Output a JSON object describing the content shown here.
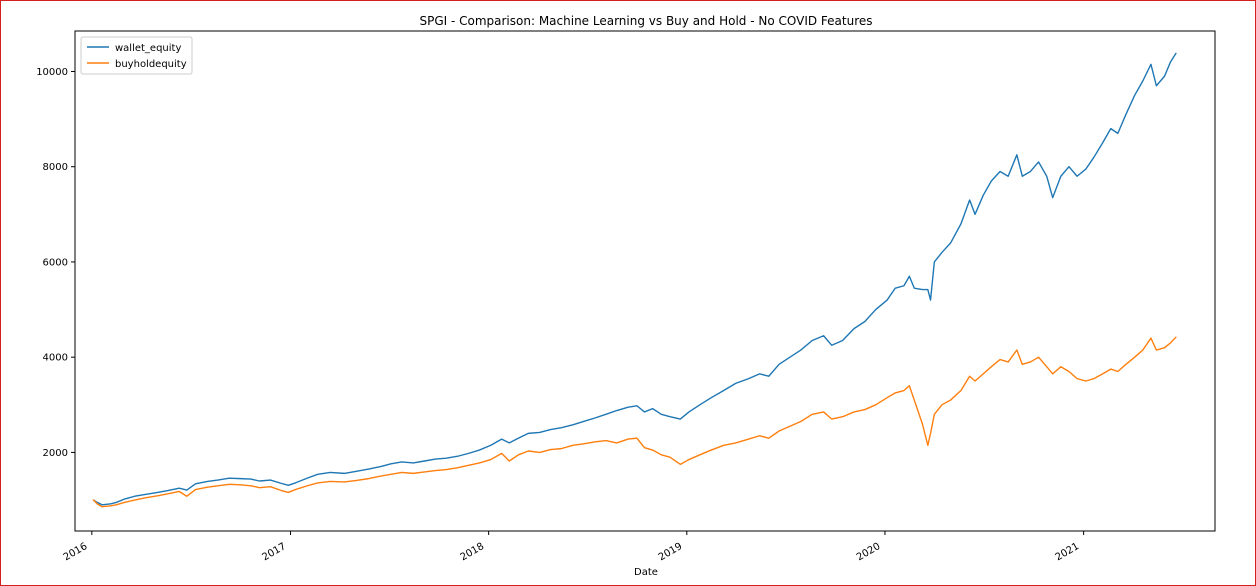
{
  "chart_data": {
    "type": "line",
    "title": "SPGI - Comparison: Machine Learning vs Buy and Hold - No COVID Features",
    "xlabel": "Date",
    "ylabel": "",
    "xlim": [
      "2015-12-01",
      "2021-08-31"
    ],
    "ylim": [
      350,
      10850
    ],
    "x_ticks": [
      "2016",
      "2017",
      "2018",
      "2019",
      "2020",
      "2021"
    ],
    "y_ticks": [
      2000,
      4000,
      6000,
      8000,
      10000
    ],
    "grid": false,
    "legend_position": "top-left",
    "colors": {
      "wallet_equity": "#1f77b4",
      "buyholdequity": "#ff7f0e"
    },
    "series": [
      {
        "name": "wallet_equity",
        "points": [
          [
            "2016-01-04",
            1000
          ],
          [
            "2016-01-11",
            950
          ],
          [
            "2016-01-20",
            900
          ],
          [
            "2016-02-05",
            920
          ],
          [
            "2016-02-15",
            950
          ],
          [
            "2016-03-01",
            1020
          ],
          [
            "2016-03-20",
            1080
          ],
          [
            "2016-04-10",
            1120
          ],
          [
            "2016-05-01",
            1160
          ],
          [
            "2016-05-20",
            1200
          ],
          [
            "2016-06-10",
            1250
          ],
          [
            "2016-06-24",
            1210
          ],
          [
            "2016-07-10",
            1340
          ],
          [
            "2016-08-01",
            1390
          ],
          [
            "2016-08-20",
            1420
          ],
          [
            "2016-09-10",
            1460
          ],
          [
            "2016-10-01",
            1450
          ],
          [
            "2016-10-20",
            1440
          ],
          [
            "2016-11-05",
            1400
          ],
          [
            "2016-11-25",
            1420
          ],
          [
            "2016-12-15",
            1350
          ],
          [
            "2016-12-28",
            1310
          ],
          [
            "2017-01-10",
            1360
          ],
          [
            "2017-02-01",
            1460
          ],
          [
            "2017-02-20",
            1540
          ],
          [
            "2017-03-15",
            1580
          ],
          [
            "2017-04-10",
            1560
          ],
          [
            "2017-05-01",
            1600
          ],
          [
            "2017-05-25",
            1650
          ],
          [
            "2017-06-15",
            1700
          ],
          [
            "2017-07-05",
            1760
          ],
          [
            "2017-07-25",
            1800
          ],
          [
            "2017-08-15",
            1780
          ],
          [
            "2017-09-05",
            1820
          ],
          [
            "2017-09-25",
            1860
          ],
          [
            "2017-10-15",
            1880
          ],
          [
            "2017-11-05",
            1920
          ],
          [
            "2017-11-25",
            1980
          ],
          [
            "2017-12-15",
            2050
          ],
          [
            "2018-01-05",
            2150
          ],
          [
            "2018-01-25",
            2280
          ],
          [
            "2018-02-08",
            2200
          ],
          [
            "2018-02-25",
            2300
          ],
          [
            "2018-03-15",
            2400
          ],
          [
            "2018-04-05",
            2420
          ],
          [
            "2018-04-25",
            2480
          ],
          [
            "2018-05-15",
            2520
          ],
          [
            "2018-06-05",
            2580
          ],
          [
            "2018-06-25",
            2650
          ],
          [
            "2018-07-15",
            2720
          ],
          [
            "2018-08-05",
            2800
          ],
          [
            "2018-08-25",
            2880
          ],
          [
            "2018-09-15",
            2950
          ],
          [
            "2018-10-01",
            2980
          ],
          [
            "2018-10-15",
            2850
          ],
          [
            "2018-10-30",
            2920
          ],
          [
            "2018-11-15",
            2800
          ],
          [
            "2018-12-01",
            2750
          ],
          [
            "2018-12-20",
            2700
          ],
          [
            "2019-01-05",
            2850
          ],
          [
            "2019-01-25",
            3000
          ],
          [
            "2019-02-15",
            3150
          ],
          [
            "2019-03-10",
            3300
          ],
          [
            "2019-04-01",
            3450
          ],
          [
            "2019-04-25",
            3550
          ],
          [
            "2019-05-15",
            3650
          ],
          [
            "2019-06-01",
            3600
          ],
          [
            "2019-06-20",
            3850
          ],
          [
            "2019-07-10",
            4000
          ],
          [
            "2019-07-30",
            4150
          ],
          [
            "2019-08-20",
            4350
          ],
          [
            "2019-09-10",
            4450
          ],
          [
            "2019-09-25",
            4250
          ],
          [
            "2019-10-15",
            4350
          ],
          [
            "2019-11-05",
            4600
          ],
          [
            "2019-11-25",
            4750
          ],
          [
            "2019-12-15",
            5000
          ],
          [
            "2020-01-05",
            5200
          ],
          [
            "2020-01-20",
            5450
          ],
          [
            "2020-02-05",
            5500
          ],
          [
            "2020-02-15",
            5700
          ],
          [
            "2020-02-24",
            5450
          ],
          [
            "2020-03-10",
            5420
          ],
          [
            "2020-03-20",
            5420
          ],
          [
            "2020-03-25",
            5200
          ],
          [
            "2020-04-01",
            6000
          ],
          [
            "2020-04-15",
            6200
          ],
          [
            "2020-05-01",
            6400
          ],
          [
            "2020-05-20",
            6800
          ],
          [
            "2020-06-05",
            7300
          ],
          [
            "2020-06-15",
            7000
          ],
          [
            "2020-06-30",
            7400
          ],
          [
            "2020-07-15",
            7700
          ],
          [
            "2020-07-31",
            7900
          ],
          [
            "2020-08-15",
            7800
          ],
          [
            "2020-08-31",
            8250
          ],
          [
            "2020-09-10",
            7800
          ],
          [
            "2020-09-25",
            7900
          ],
          [
            "2020-10-10",
            8100
          ],
          [
            "2020-10-25",
            7800
          ],
          [
            "2020-11-05",
            7350
          ],
          [
            "2020-11-20",
            7800
          ],
          [
            "2020-12-05",
            8000
          ],
          [
            "2020-12-20",
            7800
          ],
          [
            "2021-01-05",
            7950
          ],
          [
            "2021-01-20",
            8200
          ],
          [
            "2021-02-05",
            8500
          ],
          [
            "2021-02-20",
            8800
          ],
          [
            "2021-03-05",
            8700
          ],
          [
            "2021-03-20",
            9100
          ],
          [
            "2021-04-05",
            9500
          ],
          [
            "2021-04-20",
            9800
          ],
          [
            "2021-05-05",
            10150
          ],
          [
            "2021-05-15",
            9700
          ],
          [
            "2021-05-30",
            9900
          ],
          [
            "2021-06-10",
            10200
          ],
          [
            "2021-06-20",
            10380
          ]
        ]
      },
      {
        "name": "buyholdequity",
        "points": [
          [
            "2016-01-04",
            1000
          ],
          [
            "2016-01-11",
            920
          ],
          [
            "2016-01-20",
            860
          ],
          [
            "2016-02-05",
            880
          ],
          [
            "2016-02-15",
            900
          ],
          [
            "2016-03-01",
            950
          ],
          [
            "2016-03-20",
            1000
          ],
          [
            "2016-04-10",
            1050
          ],
          [
            "2016-05-01",
            1090
          ],
          [
            "2016-05-20",
            1130
          ],
          [
            "2016-06-10",
            1180
          ],
          [
            "2016-06-24",
            1080
          ],
          [
            "2016-07-10",
            1220
          ],
          [
            "2016-08-01",
            1270
          ],
          [
            "2016-08-20",
            1300
          ],
          [
            "2016-09-10",
            1330
          ],
          [
            "2016-10-01",
            1320
          ],
          [
            "2016-10-20",
            1300
          ],
          [
            "2016-11-05",
            1260
          ],
          [
            "2016-11-25",
            1280
          ],
          [
            "2016-12-15",
            1200
          ],
          [
            "2016-12-28",
            1160
          ],
          [
            "2017-01-10",
            1220
          ],
          [
            "2017-02-01",
            1300
          ],
          [
            "2017-02-20",
            1360
          ],
          [
            "2017-03-15",
            1390
          ],
          [
            "2017-04-10",
            1380
          ],
          [
            "2017-05-01",
            1410
          ],
          [
            "2017-05-25",
            1450
          ],
          [
            "2017-06-15",
            1500
          ],
          [
            "2017-07-05",
            1540
          ],
          [
            "2017-07-25",
            1580
          ],
          [
            "2017-08-15",
            1560
          ],
          [
            "2017-09-05",
            1590
          ],
          [
            "2017-09-25",
            1620
          ],
          [
            "2017-10-15",
            1640
          ],
          [
            "2017-11-05",
            1680
          ],
          [
            "2017-11-25",
            1730
          ],
          [
            "2017-12-15",
            1780
          ],
          [
            "2018-01-05",
            1850
          ],
          [
            "2018-01-25",
            1980
          ],
          [
            "2018-02-08",
            1820
          ],
          [
            "2018-02-25",
            1950
          ],
          [
            "2018-03-15",
            2030
          ],
          [
            "2018-04-05",
            2000
          ],
          [
            "2018-04-25",
            2060
          ],
          [
            "2018-05-15",
            2080
          ],
          [
            "2018-06-05",
            2150
          ],
          [
            "2018-06-25",
            2180
          ],
          [
            "2018-07-15",
            2220
          ],
          [
            "2018-08-05",
            2250
          ],
          [
            "2018-08-25",
            2200
          ],
          [
            "2018-09-15",
            2280
          ],
          [
            "2018-10-01",
            2300
          ],
          [
            "2018-10-15",
            2100
          ],
          [
            "2018-10-30",
            2050
          ],
          [
            "2018-11-15",
            1950
          ],
          [
            "2018-12-01",
            1900
          ],
          [
            "2018-12-20",
            1750
          ],
          [
            "2019-01-05",
            1850
          ],
          [
            "2019-01-25",
            1950
          ],
          [
            "2019-02-15",
            2050
          ],
          [
            "2019-03-10",
            2150
          ],
          [
            "2019-04-01",
            2200
          ],
          [
            "2019-04-25",
            2280
          ],
          [
            "2019-05-15",
            2350
          ],
          [
            "2019-06-01",
            2300
          ],
          [
            "2019-06-20",
            2450
          ],
          [
            "2019-07-10",
            2550
          ],
          [
            "2019-07-30",
            2650
          ],
          [
            "2019-08-20",
            2800
          ],
          [
            "2019-09-10",
            2850
          ],
          [
            "2019-09-25",
            2700
          ],
          [
            "2019-10-15",
            2750
          ],
          [
            "2019-11-05",
            2850
          ],
          [
            "2019-11-25",
            2900
          ],
          [
            "2019-12-15",
            3000
          ],
          [
            "2020-01-05",
            3150
          ],
          [
            "2020-01-20",
            3250
          ],
          [
            "2020-02-05",
            3300
          ],
          [
            "2020-02-15",
            3400
          ],
          [
            "2020-02-24",
            3100
          ],
          [
            "2020-03-10",
            2600
          ],
          [
            "2020-03-20",
            2150
          ],
          [
            "2020-03-25",
            2400
          ],
          [
            "2020-04-01",
            2800
          ],
          [
            "2020-04-15",
            3000
          ],
          [
            "2020-05-01",
            3100
          ],
          [
            "2020-05-20",
            3300
          ],
          [
            "2020-06-05",
            3600
          ],
          [
            "2020-06-15",
            3500
          ],
          [
            "2020-06-30",
            3650
          ],
          [
            "2020-07-15",
            3800
          ],
          [
            "2020-07-31",
            3950
          ],
          [
            "2020-08-15",
            3900
          ],
          [
            "2020-08-31",
            4150
          ],
          [
            "2020-09-10",
            3850
          ],
          [
            "2020-09-25",
            3900
          ],
          [
            "2020-10-10",
            4000
          ],
          [
            "2020-10-25",
            3800
          ],
          [
            "2020-11-05",
            3650
          ],
          [
            "2020-11-20",
            3800
          ],
          [
            "2020-12-05",
            3700
          ],
          [
            "2020-12-20",
            3550
          ],
          [
            "2021-01-05",
            3500
          ],
          [
            "2021-01-20",
            3550
          ],
          [
            "2021-02-05",
            3650
          ],
          [
            "2021-02-20",
            3750
          ],
          [
            "2021-03-05",
            3700
          ],
          [
            "2021-03-20",
            3850
          ],
          [
            "2021-04-05",
            4000
          ],
          [
            "2021-04-20",
            4150
          ],
          [
            "2021-05-05",
            4400
          ],
          [
            "2021-05-15",
            4150
          ],
          [
            "2021-05-30",
            4200
          ],
          [
            "2021-06-10",
            4300
          ],
          [
            "2021-06-20",
            4420
          ]
        ]
      }
    ]
  }
}
